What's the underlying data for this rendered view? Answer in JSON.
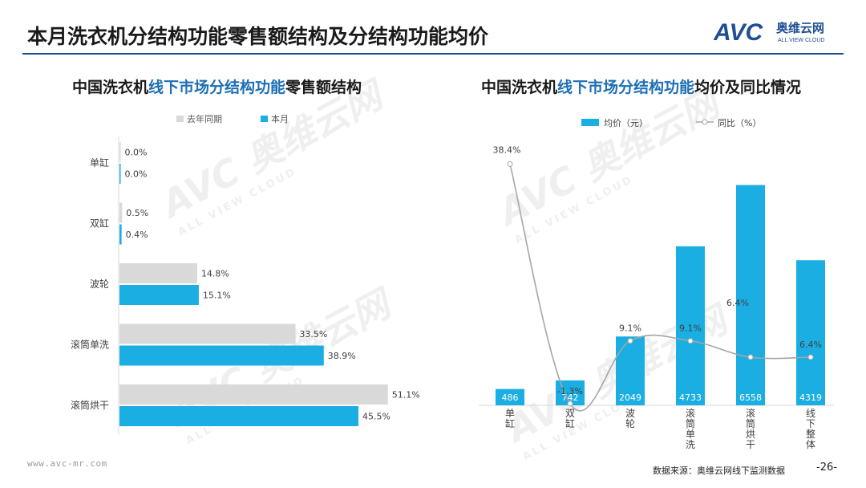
{
  "header": {
    "title": "本月洗衣机分结构功能零售额结构及分结构功能均价",
    "logo_mark": "AVC",
    "logo_cn": "奥维云网",
    "logo_en": "ALL VIEW CLOUD",
    "brand_color": "#1f4e96"
  },
  "left_chart": {
    "title_pre": "中国洗衣机",
    "title_hl": "线下市场分结构功能",
    "title_post": "零售额结构"
  },
  "right_chart": {
    "title_pre": "中国洗衣机",
    "title_hl": "线下市场分结构功能",
    "title_post": "均价及同比情况"
  },
  "chart_data": [
    {
      "type": "bar",
      "orientation": "horizontal",
      "categories": [
        "单缸",
        "双缸",
        "波轮",
        "滚筒单洗",
        "滚筒烘干"
      ],
      "series": [
        {
          "name": "去年同期",
          "values": [
            0.0,
            0.5,
            14.8,
            33.5,
            51.1
          ],
          "labels": [
            "0.0%",
            "0.5%",
            "14.8%",
            "33.5%",
            "51.1%"
          ],
          "color": "#d9d9d9"
        },
        {
          "name": "本月",
          "values": [
            0.0,
            0.4,
            15.1,
            38.9,
            45.5
          ],
          "labels": [
            "0.0%",
            "0.4%",
            "15.1%",
            "38.9%",
            "45.5%"
          ],
          "color": "#1aaee3"
        }
      ],
      "legend": "top",
      "xlim": [
        0,
        60
      ]
    },
    {
      "type": "bar",
      "categories": [
        "单缸",
        "双缸",
        "波轮",
        "滚筒单洗",
        "滚筒烘干",
        "线下整体"
      ],
      "series": [
        {
          "name": "均价（元）",
          "type": "bar",
          "values": [
            486,
            742,
            2049,
            4733,
            6558,
            4319
          ],
          "color": "#1aaee3"
        },
        {
          "name": "同比（%）",
          "type": "line",
          "values": [
            38.4,
            -1.3,
            9.1,
            9.1,
            6.4,
            6.4
          ],
          "labels": [
            "38.4%",
            "-1.3%",
            "9.1%",
            "9.1%",
            "6.4%",
            "6.4%"
          ],
          "color": "#a6a6a6"
        }
      ],
      "legend": "top",
      "ylim_bar": [
        0,
        7000
      ],
      "ylim_line": [
        -5,
        45
      ]
    }
  ],
  "footer": {
    "website": "www.avc-mr.com",
    "source": "数据来源：奥维云网线下监测数据",
    "page": "-26-"
  },
  "watermark": {
    "mark": "AVC",
    "cn": "奥维云网",
    "en": "ALL VIEW CLOUD"
  }
}
